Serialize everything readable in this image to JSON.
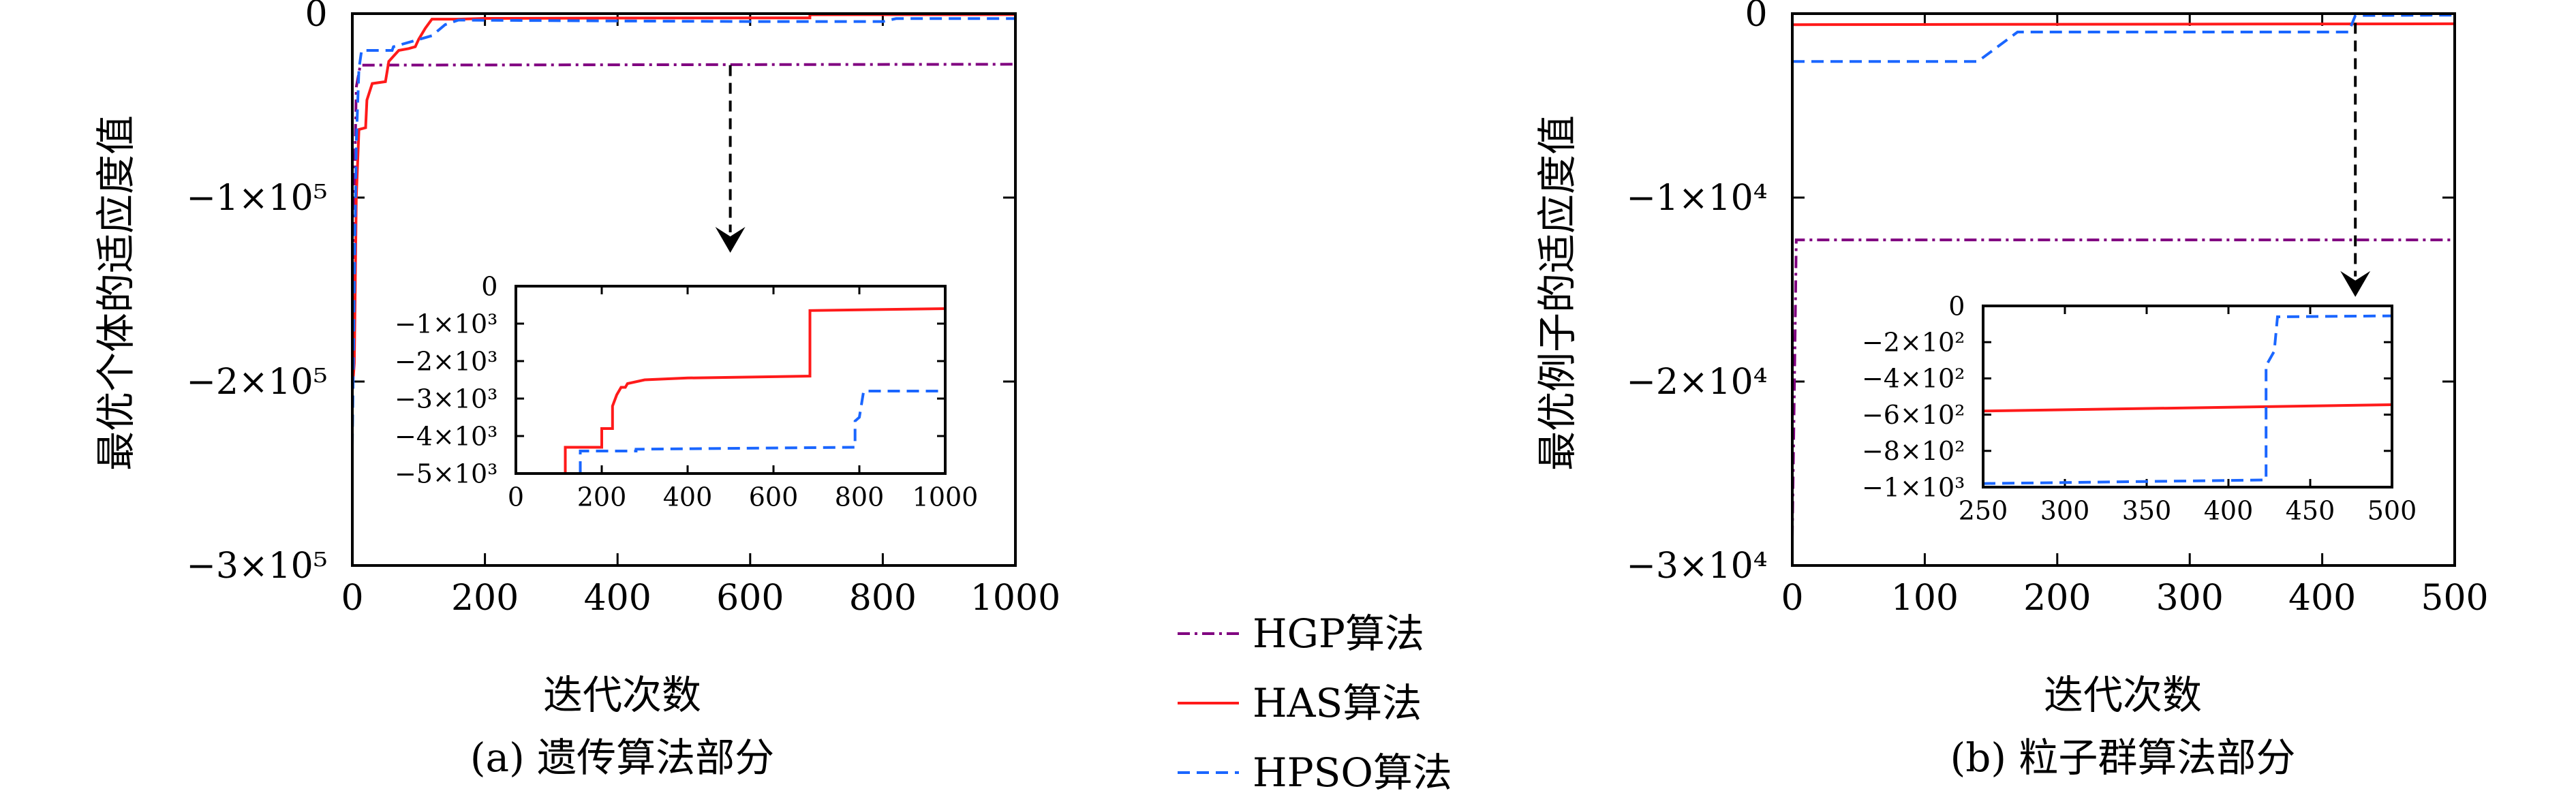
{
  "legend": {
    "items": [
      {
        "label": "HGP算法",
        "color": "#800080",
        "dash": "dashdot"
      },
      {
        "label": "HAS算法",
        "color": "#ff1a1a",
        "dash": "solid"
      },
      {
        "label": "HPSO算法",
        "color": "#1a66ff",
        "dash": "dashed"
      }
    ]
  },
  "chart_data": [
    {
      "type": "line",
      "caption": "(a) 遗传算法部分",
      "xlabel": "迭代次数",
      "ylabel": "最优个体的适应度值",
      "xlim": [
        0,
        1000
      ],
      "ylim": [
        -300000,
        0
      ],
      "xticks": [
        0,
        200,
        400,
        600,
        800,
        1000
      ],
      "xtick_labels": [
        "0",
        "200",
        "400",
        "600",
        "800",
        "1000"
      ],
      "yticks": [
        0,
        -100000,
        -200000,
        -300000
      ],
      "ytick_labels": [
        "0",
        "−1×10⁵",
        "−2×10⁵",
        "−3×10⁵"
      ],
      "series": [
        {
          "name": "HGP算法",
          "color": "#800080",
          "dash": "dashdot",
          "points": [
            [
              0,
              -200000
            ],
            [
              3,
              -100000
            ],
            [
              6,
              -40000
            ],
            [
              12,
              -28000
            ],
            [
              1000,
              -27500
            ]
          ]
        },
        {
          "name": "HAS算法",
          "color": "#ff1a1a",
          "dash": "solid",
          "points": [
            [
              0,
              -205000
            ],
            [
              3,
              -190000
            ],
            [
              6,
              -100000
            ],
            [
              10,
              -63000
            ],
            [
              20,
              -62000
            ],
            [
              22,
              -47000
            ],
            [
              30,
              -38000
            ],
            [
              50,
              -37000
            ],
            [
              55,
              -26000
            ],
            [
              70,
              -20000
            ],
            [
              85,
              -19000
            ],
            [
              95,
              -18000
            ],
            [
              100,
              -14000
            ],
            [
              110,
              -8000
            ],
            [
              120,
              -3000
            ],
            [
              160,
              -3000
            ],
            [
              200,
              -2600
            ],
            [
              300,
              -2500
            ],
            [
              400,
              -2400
            ],
            [
              690,
              -2300
            ],
            [
              690,
              -600
            ],
            [
              1000,
              -500
            ]
          ]
        },
        {
          "name": "HPSO算法",
          "color": "#1a66ff",
          "dash": "dashed",
          "points": [
            [
              0,
              -235000
            ],
            [
              3,
              -150000
            ],
            [
              6,
              -70000
            ],
            [
              10,
              -30000
            ],
            [
              14,
              -20000
            ],
            [
              60,
              -20000
            ],
            [
              62,
              -18000
            ],
            [
              120,
              -12000
            ],
            [
              140,
              -6000
            ],
            [
              160,
              -3500
            ],
            [
              400,
              -4000
            ],
            [
              600,
              -4300
            ],
            [
              800,
              -4300
            ],
            [
              820,
              -2700
            ],
            [
              1000,
              -2700
            ]
          ]
        }
      ],
      "annotation": {
        "type": "arrow",
        "from": [
          570,
          -28000
        ],
        "to": [
          570,
          -130000
        ]
      },
      "inset": {
        "xlim": [
          0,
          1000
        ],
        "ylim": [
          -5000,
          0
        ],
        "xticks": [
          0,
          200,
          400,
          600,
          800,
          1000
        ],
        "xtick_labels": [
          "0",
          "200",
          "400",
          "600",
          "800",
          "1000"
        ],
        "yticks": [
          0,
          -1000,
          -2000,
          -3000,
          -4000,
          -5000
        ],
        "ytick_labels": [
          "0",
          "−1×10³",
          "−2×10³",
          "−3×10³",
          "−4×10³",
          "−5×10³"
        ],
        "series": [
          {
            "name": "HAS算法",
            "color": "#ff1a1a",
            "dash": "solid",
            "points": [
              [
                115,
                -5000
              ],
              [
                115,
                -4300
              ],
              [
                200,
                -4300
              ],
              [
                200,
                -3800
              ],
              [
                225,
                -3800
              ],
              [
                225,
                -3200
              ],
              [
                235,
                -2900
              ],
              [
                245,
                -2700
              ],
              [
                255,
                -2700
              ],
              [
                260,
                -2600
              ],
              [
                300,
                -2500
              ],
              [
                400,
                -2450
              ],
              [
                685,
                -2400
              ],
              [
                685,
                -650
              ],
              [
                1000,
                -600
              ]
            ]
          },
          {
            "name": "HPSO算法",
            "color": "#1a66ff",
            "dash": "dashed",
            "points": [
              [
                150,
                -5000
              ],
              [
                150,
                -4400
              ],
              [
                280,
                -4400
              ],
              [
                280,
                -4350
              ],
              [
                790,
                -4300
              ],
              [
                790,
                -3600
              ],
              [
                800,
                -3500
              ],
              [
                810,
                -2800
              ],
              [
                1000,
                -2800
              ]
            ]
          }
        ]
      }
    },
    {
      "type": "line",
      "caption": "(b) 粒子群算法部分",
      "xlabel": "迭代次数",
      "ylabel": "最优例子的适应度值",
      "xlim": [
        0,
        500
      ],
      "ylim": [
        -30000,
        0
      ],
      "xticks": [
        0,
        100,
        200,
        300,
        400,
        500
      ],
      "xtick_labels": [
        "0",
        "100",
        "200",
        "300",
        "400",
        "500"
      ],
      "yticks": [
        0,
        -10000,
        -20000,
        -30000
      ],
      "ytick_labels": [
        "0",
        "−1×10⁴",
        "−2×10⁴",
        "−3×10⁴"
      ],
      "series": [
        {
          "name": "HGP算法",
          "color": "#800080",
          "dash": "dashdot",
          "points": [
            [
              0,
              -28500
            ],
            [
              2,
              -18000
            ],
            [
              3,
              -12300
            ],
            [
              500,
              -12300
            ]
          ]
        },
        {
          "name": "HAS算法",
          "color": "#ff1a1a",
          "dash": "solid",
          "points": [
            [
              0,
              -600
            ],
            [
              500,
              -550
            ]
          ]
        },
        {
          "name": "HPSO算法",
          "color": "#1a66ff",
          "dash": "dashed",
          "points": [
            [
              0,
              -2600
            ],
            [
              140,
              -2600
            ],
            [
              170,
              -1000
            ],
            [
              420,
              -1000
            ],
            [
              425,
              -100
            ],
            [
              500,
              -80
            ]
          ]
        }
      ],
      "annotation": {
        "type": "arrow",
        "from": [
          425,
          -500
        ],
        "to": [
          425,
          -15400
        ]
      },
      "inset": {
        "xlim": [
          250,
          500
        ],
        "ylim": [
          -1000,
          0
        ],
        "xticks": [
          250,
          300,
          350,
          400,
          450,
          500
        ],
        "xtick_labels": [
          "250",
          "300",
          "350",
          "400",
          "450",
          "500"
        ],
        "yticks": [
          0,
          -200,
          -400,
          -600,
          -800,
          -1000
        ],
        "ytick_labels": [
          "0",
          "−2×10²",
          "−4×10²",
          "−6×10²",
          "−8×10²",
          "−1×10³"
        ],
        "series": [
          {
            "name": "HAS算法",
            "color": "#ff1a1a",
            "dash": "solid",
            "points": [
              [
                250,
                -580
              ],
              [
                500,
                -545
              ]
            ]
          },
          {
            "name": "HPSO算法",
            "color": "#1a66ff",
            "dash": "dashed",
            "points": [
              [
                250,
                -980
              ],
              [
                300,
                -975
              ],
              [
                423,
                -960
              ],
              [
                423,
                -330
              ],
              [
                428,
                -250
              ],
              [
                430,
                -60
              ],
              [
                500,
                -55
              ]
            ]
          }
        ]
      }
    }
  ]
}
